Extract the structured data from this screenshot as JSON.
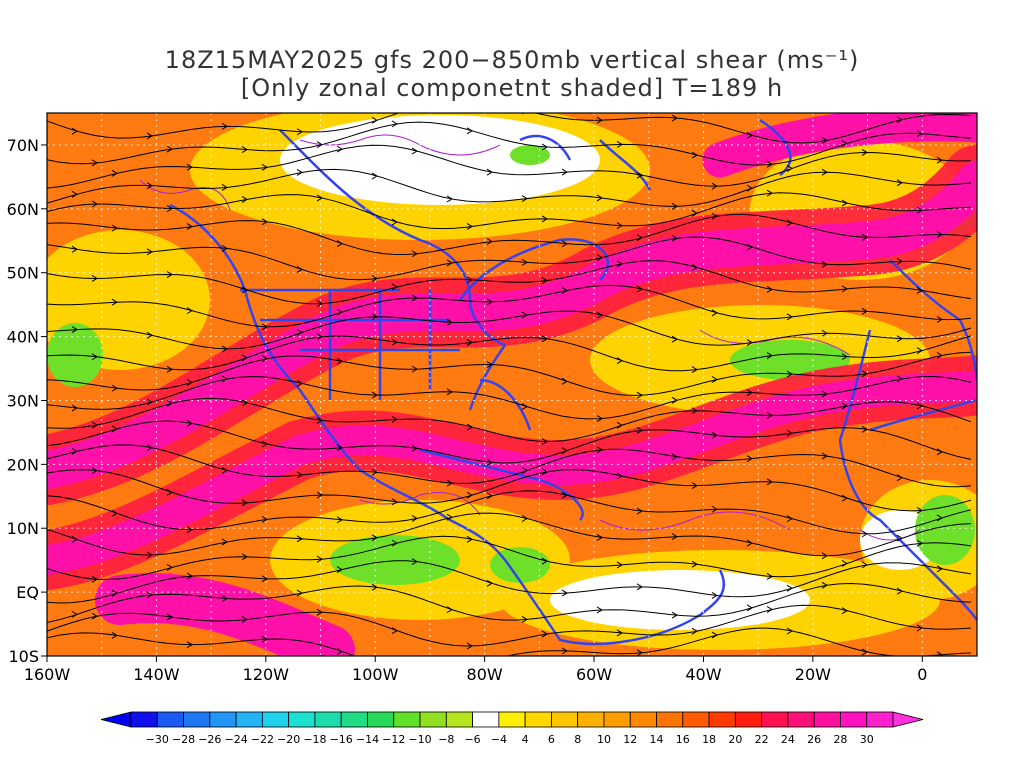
{
  "title": {
    "line1": "18Z15MAY2025 gfs 200−850mb vertical shear (ms⁻¹)",
    "line2": "[Only zonal componetnt shaded] T=189 h"
  },
  "map": {
    "lon_range": [
      -160,
      10
    ],
    "lat_range": [
      -10,
      75
    ],
    "lat_ticks": [
      "70N",
      "60N",
      "50N",
      "40N",
      "30N",
      "20N",
      "10N",
      "EQ",
      "10S"
    ],
    "lon_ticks": [
      "160W",
      "140W",
      "120W",
      "100W",
      "80W",
      "60W",
      "40W",
      "20W",
      "0"
    ],
    "coastline_color": "#3344ee",
    "contour_color": "#aa22cc",
    "streamline_color": "#000000",
    "gridline_style": "dotted white"
  },
  "colorbar": {
    "labels": [
      "−30",
      "−28",
      "−26",
      "−24",
      "−22",
      "−20",
      "−18",
      "−16",
      "−14",
      "−12",
      "−10",
      "−8",
      "−6",
      "−4",
      "4",
      "6",
      "8",
      "10",
      "12",
      "14",
      "16",
      "18",
      "20",
      "22",
      "24",
      "26",
      "28",
      "30"
    ],
    "colors": [
      "#1010ee",
      "#1a5af0",
      "#1f78f2",
      "#2296f4",
      "#24b4f4",
      "#1ed2f0",
      "#1ee0d0",
      "#1edcaa",
      "#20dc86",
      "#2ad858",
      "#60e028",
      "#90e020",
      "#b4e41c",
      "#ffffff",
      "#fff000",
      "#ffd800",
      "#ffc400",
      "#ffb000",
      "#ff9c00",
      "#ff8800",
      "#ff7400",
      "#ff5a00",
      "#ff3c00",
      "#ff1c10",
      "#ff1050",
      "#ff1078",
      "#ff10a0",
      "#ff10c0",
      "#ff20d0"
    ]
  }
}
